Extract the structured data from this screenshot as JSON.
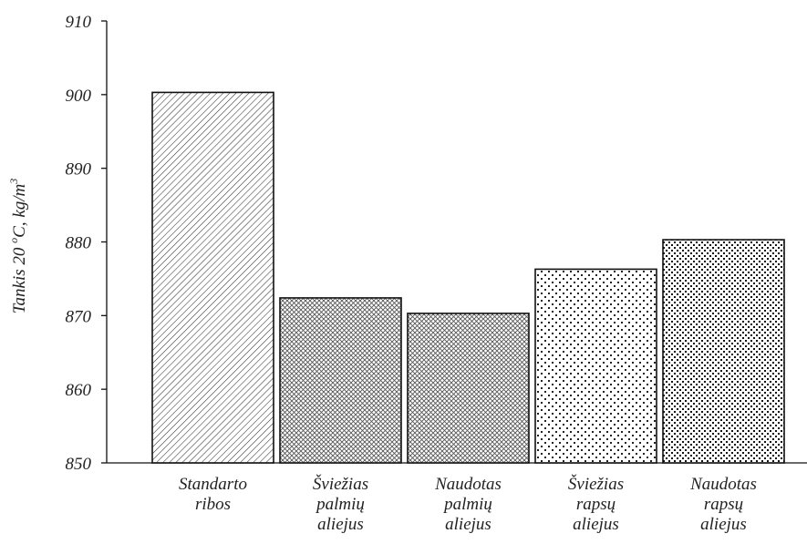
{
  "chart_data": {
    "type": "bar",
    "categories": [
      [
        "Standarto",
        "ribos"
      ],
      [
        "Šviežias",
        "palmių",
        "aliejus"
      ],
      [
        "Naudotas",
        "palmių",
        "aliejus"
      ],
      [
        "Šviežias",
        "rapsų",
        "aliejus"
      ],
      [
        "Naudotas",
        "rapsų",
        "aliejus"
      ]
    ],
    "values": [
      900.3,
      872.4,
      870.3,
      876.3,
      880.3
    ],
    "patterns": [
      "diagonal-hatch",
      "crosshatch-fine",
      "crosshatch-fine",
      "dots-sparse",
      "dots-dense"
    ],
    "ylabel": {
      "prefix": "Tankis 20 ",
      "superscript": "o",
      "middle": "C, kg/m",
      "superscript2": "3"
    },
    "ylim": [
      850,
      910
    ],
    "yticks": [
      850,
      860,
      870,
      880,
      890,
      900,
      910
    ],
    "grid": false,
    "colors": {
      "ink": "#111111",
      "fill": "#ffffff"
    }
  }
}
